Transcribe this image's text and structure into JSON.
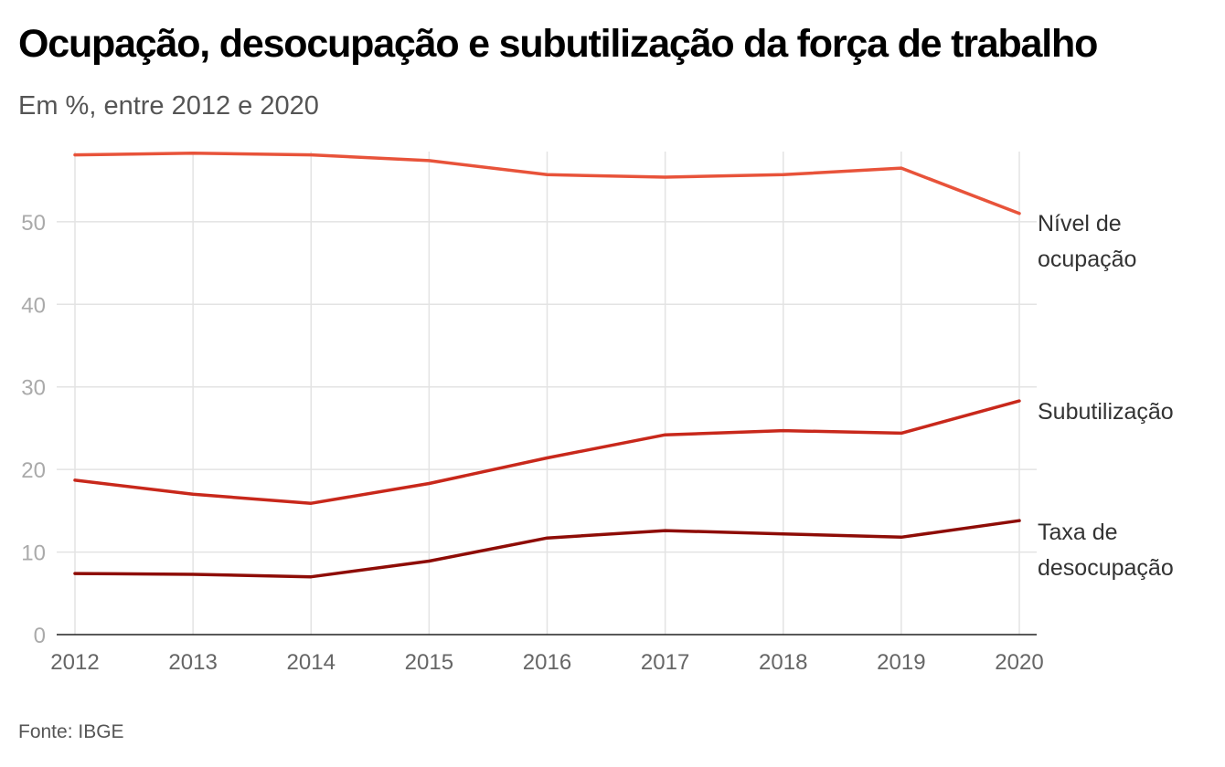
{
  "title": "Ocupação, desocupação e subutilização da força de trabalho",
  "subtitle": "Em %, entre 2012 e 2020",
  "source": "Fonte: IBGE",
  "chart_data": {
    "type": "line",
    "title": "Ocupação, desocupação e subutilização da força de trabalho",
    "subtitle": "Em %, entre 2012 e 2020",
    "x": [
      2012,
      2013,
      2014,
      2015,
      2016,
      2017,
      2018,
      2019,
      2020
    ],
    "x_tick_labels": [
      "2012",
      "2013",
      "2014",
      "2015",
      "2016",
      "2017",
      "2018",
      "2019",
      "2020"
    ],
    "y_ticks": [
      0,
      10,
      20,
      30,
      40,
      50
    ],
    "ylim": [
      0,
      58.5
    ],
    "grid": true,
    "legend": "inline-right",
    "series": [
      {
        "name": "Nível de ocupação",
        "label_lines": [
          "Nível de",
          "ocupação"
        ],
        "color": "#e8533a",
        "values": [
          58.1,
          58.3,
          58.1,
          57.4,
          55.7,
          55.4,
          55.7,
          56.5,
          51.0
        ]
      },
      {
        "name": "Subutilização",
        "label_lines": [
          "Subutilização"
        ],
        "color": "#c8281b",
        "values": [
          18.7,
          17.0,
          15.9,
          18.3,
          21.4,
          24.2,
          24.7,
          24.4,
          28.3
        ]
      },
      {
        "name": "Taxa de desocupação",
        "label_lines": [
          "Taxa de",
          "desocupação"
        ],
        "color": "#8e0c06",
        "values": [
          7.4,
          7.3,
          7.0,
          8.9,
          11.7,
          12.6,
          12.2,
          11.8,
          13.8
        ]
      }
    ]
  }
}
